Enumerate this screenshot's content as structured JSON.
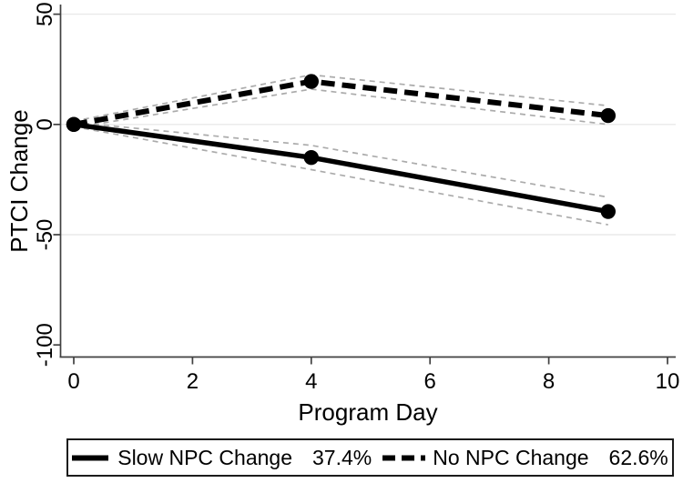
{
  "chart_data": {
    "type": "line",
    "title": "",
    "xlabel": "Program Day",
    "ylabel": "PTCI Change",
    "x_ticks": [
      0,
      2,
      4,
      6,
      8,
      10
    ],
    "y_ticks": [
      50,
      0,
      -50,
      -100
    ],
    "grid_y": [
      50,
      0,
      -50
    ],
    "xlim": [
      -0.2,
      10.15
    ],
    "ylim": [
      -105,
      54
    ],
    "legend_position": "bottom",
    "grid_on": true,
    "series": [
      {
        "name": "Slow NPC Change",
        "share": "37.4%",
        "line_style": "solid",
        "color": "#000000",
        "x": [
          0,
          4,
          9
        ],
        "y": [
          0,
          -15,
          -39.5
        ],
        "ci_upper": [
          1,
          -9.5,
          -33
        ],
        "ci_lower": [
          -1,
          -20.5,
          -45.5
        ]
      },
      {
        "name": "No NPC Change",
        "share": "62.6%",
        "line_style": "dashed",
        "color": "#000000",
        "x": [
          0,
          4,
          9
        ],
        "y": [
          0,
          19.5,
          4
        ],
        "ci_upper": [
          1.5,
          22.5,
          8.5
        ],
        "ci_lower": [
          -1.5,
          16,
          0
        ]
      }
    ],
    "ci_color": "#ababab",
    "grid_color": "#eaeaea",
    "axis_color": "#404040",
    "marker": "filled-circle"
  },
  "legend": {
    "entries": [
      {
        "label": "Slow NPC Change",
        "value": "37.4%"
      },
      {
        "label": "No NPC Change",
        "value": "62.6%"
      }
    ]
  }
}
